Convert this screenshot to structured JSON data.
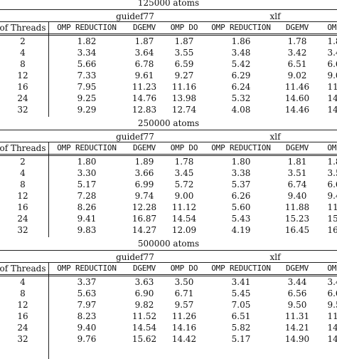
{
  "tables": [
    {
      "title": "125000 atoms",
      "groups": [
        "guidef77",
        "xlf"
      ],
      "headers": [
        "of Threads",
        "OMP REDUCTION",
        "DGEMV",
        "OMP DO",
        "OMP REDUCTION",
        "DGEMV",
        "OMP"
      ],
      "rows": [
        [
          "2",
          "1.82",
          "1.87",
          "1.87",
          "1.86",
          "1.78",
          "1.8"
        ],
        [
          "4",
          "3.34",
          "3.64",
          "3.55",
          "3.48",
          "3.42",
          "3.4"
        ],
        [
          "8",
          "5.66",
          "6.78",
          "6.59",
          "5.42",
          "6.51",
          "6.6"
        ],
        [
          "12",
          "7.33",
          "9.61",
          "9.27",
          "6.29",
          "9.02",
          "9.0"
        ],
        [
          "16",
          "7.95",
          "11.23",
          "11.16",
          "6.24",
          "11.46",
          "11."
        ],
        [
          "24",
          "9.25",
          "14.76",
          "13.98",
          "5.32",
          "14.60",
          "14."
        ],
        [
          "32",
          "9.29",
          "12.83",
          "12.74",
          "4.08",
          "14.46",
          "14."
        ]
      ]
    },
    {
      "title": "250000 atoms",
      "groups": [
        "guidef77",
        "xlf"
      ],
      "headers": [
        "of Threads",
        "OMP REDUCTION",
        "DGEMV",
        "OMP DO",
        "OMP REDUCTION",
        "DGEMV",
        "OMP"
      ],
      "rows": [
        [
          "2",
          "1.80",
          "1.89",
          "1.78",
          "1.80",
          "1.81",
          "1.8"
        ],
        [
          "4",
          "3.30",
          "3.66",
          "3.45",
          "3.38",
          "3.51",
          "3.5"
        ],
        [
          "8",
          "5.17",
          "6.99",
          "5.72",
          "5.37",
          "6.74",
          "6.6"
        ],
        [
          "12",
          "7.28",
          "9.74",
          "9.00",
          "6.26",
          "9.40",
          "9.4"
        ],
        [
          "16",
          "8.26",
          "12.28",
          "11.12",
          "5.60",
          "11.88",
          "11."
        ],
        [
          "24",
          "9.41",
          "16.87",
          "14.54",
          "5.43",
          "15.23",
          "15."
        ],
        [
          "32",
          "9.83",
          "14.27",
          "12.09",
          "4.19",
          "16.45",
          "16."
        ]
      ]
    },
    {
      "title": "500000 atoms",
      "groups": [
        "guidef77",
        "xlf"
      ],
      "headers": [
        "of Threads",
        "OMP REDUCTION",
        "DGEMV",
        "OMP DO",
        "OMP REDUCTION",
        "DGEMV",
        "OMP"
      ],
      "rows": [
        [
          "4",
          "3.37",
          "3.63",
          "3.50",
          "3.41",
          "3.44",
          "3.4"
        ],
        [
          "8",
          "5.63",
          "6.90",
          "6.71",
          "5.45",
          "6.56",
          "6.6"
        ],
        [
          "12",
          "7.97",
          "9.82",
          "9.57",
          "7.05",
          "9.50",
          "9.5"
        ],
        [
          "16",
          "8.23",
          "11.52",
          "11.26",
          "6.51",
          "11.31",
          "11."
        ],
        [
          "24",
          "9.40",
          "14.54",
          "14.16",
          "5.82",
          "14.21",
          "14."
        ],
        [
          "32",
          "9.76",
          "15.62",
          "14.42",
          "5.17",
          "14.90",
          "14."
        ]
      ]
    }
  ]
}
